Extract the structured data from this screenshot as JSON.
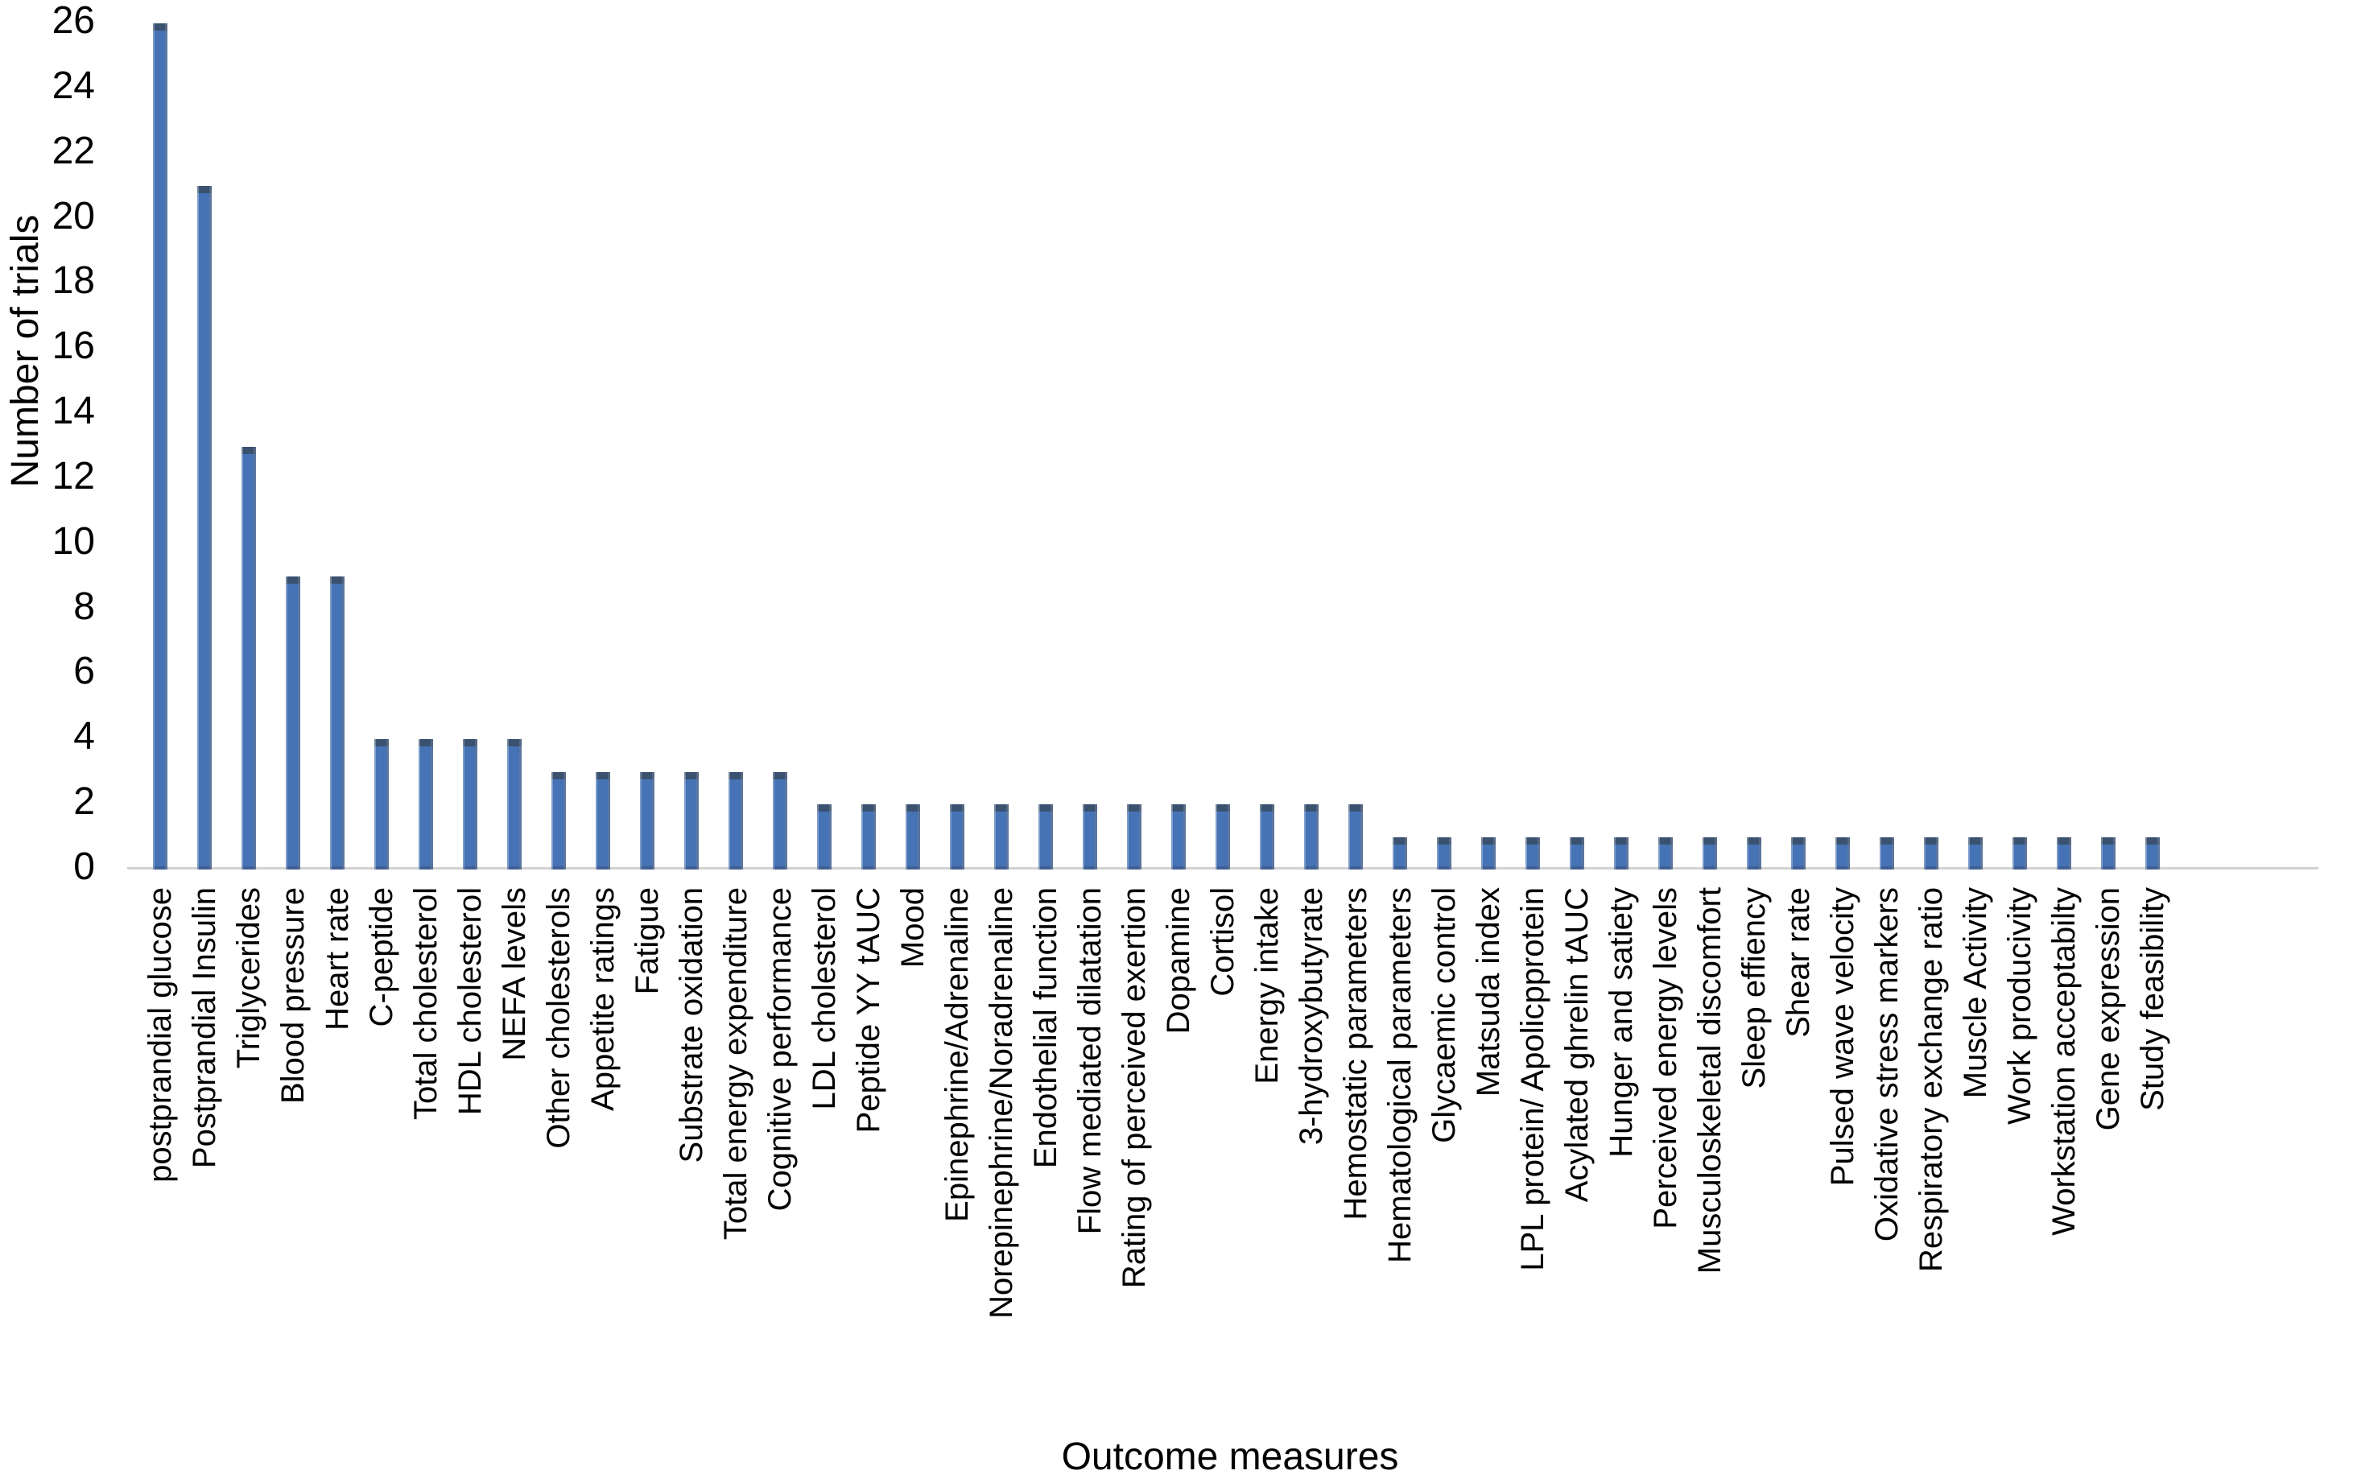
{
  "chart_data": {
    "type": "bar",
    "title": "",
    "xlabel": "Outcome measures",
    "ylabel": "Number of trials",
    "ylim": [
      0,
      26
    ],
    "yticks": [
      0,
      2,
      4,
      6,
      8,
      10,
      12,
      14,
      16,
      18,
      20,
      22,
      24,
      26
    ],
    "grid": false,
    "legend_position": "none",
    "bar_color": "#4573b5",
    "bar_cap_color": "#3a5170",
    "bar_bottom_color": "#3f5f94",
    "axis_line_color": "#d2d2d2",
    "text_color": "#000000",
    "background_color": "#ffffff",
    "categories": [
      "postprandial glucose",
      "Postprandial Insulin",
      "Triglycerides",
      "Blood pressure",
      "Heart rate",
      "C-peptide",
      "Total cholesterol",
      "HDL cholesterol",
      "NEFA levels",
      "Other cholesterols",
      "Appetite ratings",
      "Fatigue",
      "Substrate oxidation",
      "Total energy expenditure",
      "Cognitive performance",
      "LDL cholesterol",
      "Peptide YY tAUC",
      "Mood",
      "Epinephrine/Adrenaline",
      "Norepinephrine/Noradrenaline",
      "Endothelial function",
      "Flow mediated dilatation",
      "Rating of perceived exertion",
      "Dopamine",
      "Cortisol",
      "Energy intake",
      "3-hydroxybutyrate",
      "Hemostatic parameters",
      "Hematological parameters",
      "Glycaemic control",
      "Matsuda index",
      "LPL protein/ Apolicpprotein",
      "Acylated ghrelin tAUC",
      "Hunger and satiety",
      "Perceived energy levels",
      "Musculoskeletal discomfort",
      "Sleep effiency",
      "Shear rate",
      "Pulsed wave velocity",
      "Oxidative stress markers",
      "Respiratory exchange ratio",
      "Muscle Activity",
      "Work producivity",
      "Workstation acceptabilty",
      "Gene expression",
      "Study feasibility"
    ],
    "values": [
      26,
      21,
      13,
      9,
      9,
      4,
      4,
      4,
      4,
      3,
      3,
      3,
      3,
      3,
      3,
      2,
      2,
      2,
      2,
      2,
      2,
      2,
      2,
      2,
      2,
      2,
      2,
      2,
      1,
      1,
      1,
      1,
      1,
      1,
      1,
      1,
      1,
      1,
      1,
      1,
      1,
      1,
      1,
      1,
      1,
      1
    ]
  }
}
